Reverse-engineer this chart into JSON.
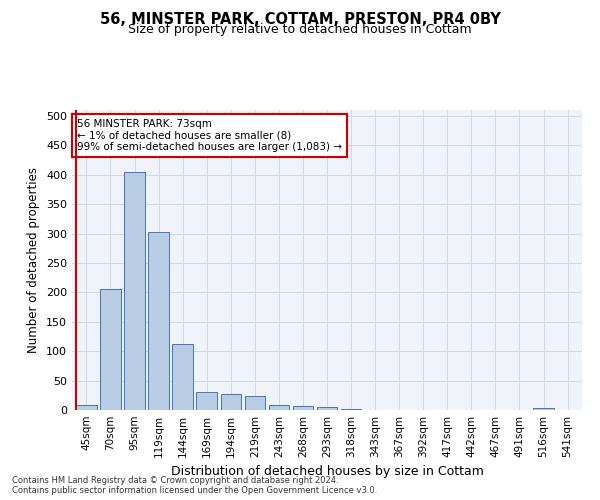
{
  "title": "56, MINSTER PARK, COTTAM, PRESTON, PR4 0BY",
  "subtitle": "Size of property relative to detached houses in Cottam",
  "xlabel": "Distribution of detached houses by size in Cottam",
  "ylabel": "Number of detached properties",
  "bar_labels": [
    "45sqm",
    "70sqm",
    "95sqm",
    "119sqm",
    "144sqm",
    "169sqm",
    "194sqm",
    "219sqm",
    "243sqm",
    "268sqm",
    "293sqm",
    "318sqm",
    "343sqm",
    "367sqm",
    "392sqm",
    "417sqm",
    "442sqm",
    "467sqm",
    "491sqm",
    "516sqm",
    "541sqm"
  ],
  "bar_values": [
    8,
    205,
    405,
    302,
    112,
    30,
    27,
    24,
    8,
    6,
    5,
    1,
    0,
    0,
    0,
    0,
    0,
    0,
    0,
    3,
    0
  ],
  "bar_color": "#b8cce4",
  "bar_edge_color": "#4472c4",
  "vline_color": "#cc0000",
  "annotation_line1": "56 MINSTER PARK: 73sqm",
  "annotation_line2": "← 1% of detached houses are smaller (8)",
  "annotation_line3": "99% of semi-detached houses are larger (1,083) →",
  "annotation_box_color": "#ffffff",
  "annotation_box_edge_color": "#cc0000",
  "ylim": [
    0,
    510
  ],
  "yticks": [
    0,
    50,
    100,
    150,
    200,
    250,
    300,
    350,
    400,
    450,
    500
  ],
  "grid_color": "#d0d8e8",
  "footer_line1": "Contains HM Land Registry data © Crown copyright and database right 2024.",
  "footer_line2": "Contains public sector information licensed under the Open Government Licence v3.0.",
  "bg_color": "#f0f4fa"
}
